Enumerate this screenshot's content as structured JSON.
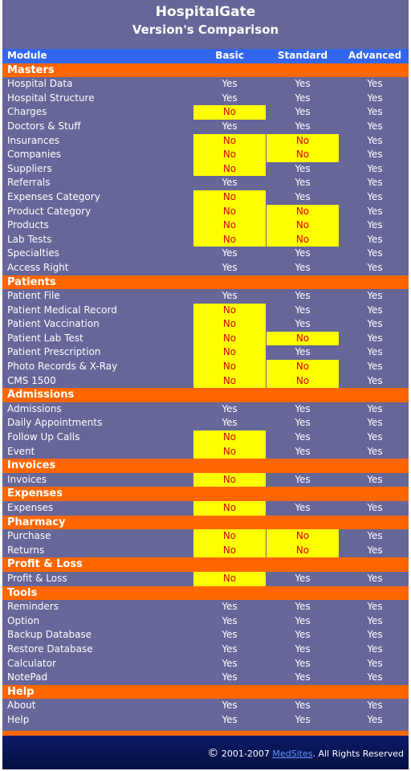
{
  "header": {
    "title": "HospitalGate",
    "subtitle": "Version's Comparison"
  },
  "table": {
    "columns": [
      "Module",
      "Basic",
      "Standard",
      "Advanced"
    ],
    "sections": [
      {
        "name": "Masters",
        "rows": [
          {
            "feature": "Hospital Data",
            "values": [
              "Yes",
              "Yes",
              "Yes"
            ]
          },
          {
            "feature": "Hospital Structure",
            "values": [
              "Yes",
              "Yes",
              "Yes"
            ]
          },
          {
            "feature": "Charges",
            "values": [
              "No",
              "Yes",
              "Yes"
            ]
          },
          {
            "feature": "Doctors & Stuff",
            "values": [
              "Yes",
              "Yes",
              "Yes"
            ]
          },
          {
            "feature": "Insurances",
            "values": [
              "No",
              "No",
              "Yes"
            ]
          },
          {
            "feature": "Companies",
            "values": [
              "No",
              "No",
              "Yes"
            ]
          },
          {
            "feature": "Suppliers",
            "values": [
              "No",
              "Yes",
              "Yes"
            ]
          },
          {
            "feature": "Referrals",
            "values": [
              "Yes",
              "Yes",
              "Yes"
            ]
          },
          {
            "feature": "Expenses Category",
            "values": [
              "No",
              "Yes",
              "Yes"
            ]
          },
          {
            "feature": "Product Category",
            "values": [
              "No",
              "No",
              "Yes"
            ]
          },
          {
            "feature": "Products",
            "values": [
              "No",
              "No",
              "Yes"
            ]
          },
          {
            "feature": "Lab Tests",
            "values": [
              "No",
              "No",
              "Yes"
            ]
          },
          {
            "feature": "Specialties",
            "values": [
              "Yes",
              "Yes",
              "Yes"
            ]
          },
          {
            "feature": "Access Right",
            "values": [
              "Yes",
              "Yes",
              "Yes"
            ]
          }
        ]
      },
      {
        "name": "Patients",
        "rows": [
          {
            "feature": "Patient File",
            "values": [
              "Yes",
              "Yes",
              "Yes"
            ]
          },
          {
            "feature": "Patient Medical Record",
            "values": [
              "No",
              "Yes",
              "Yes"
            ]
          },
          {
            "feature": "Patient Vaccination",
            "values": [
              "No",
              "Yes",
              "Yes"
            ]
          },
          {
            "feature": "Patient Lab Test",
            "values": [
              "No",
              "No",
              "Yes"
            ]
          },
          {
            "feature": "Patient Prescription",
            "values": [
              "No",
              "Yes",
              "Yes"
            ]
          },
          {
            "feature": "Photo Records & X-Ray",
            "values": [
              "No",
              "No",
              "Yes"
            ]
          },
          {
            "feature": "CMS 1500",
            "values": [
              "No",
              "No",
              "Yes"
            ]
          }
        ]
      },
      {
        "name": "Admissions",
        "rows": [
          {
            "feature": "Admissions",
            "values": [
              "Yes",
              "Yes",
              "Yes"
            ]
          },
          {
            "feature": "Daily Appointments",
            "values": [
              "Yes",
              "Yes",
              "Yes"
            ]
          },
          {
            "feature": "Follow Up Calls",
            "values": [
              "No",
              "Yes",
              "Yes"
            ]
          },
          {
            "feature": "Event",
            "values": [
              "No",
              "Yes",
              "Yes"
            ]
          }
        ]
      },
      {
        "name": "Invoices",
        "rows": [
          {
            "feature": "Invoices",
            "values": [
              "No",
              "Yes",
              "Yes"
            ]
          }
        ]
      },
      {
        "name": "Expenses",
        "rows": [
          {
            "feature": "Expenses",
            "values": [
              "No",
              "Yes",
              "Yes"
            ]
          }
        ]
      },
      {
        "name": "Pharmacy",
        "rows": [
          {
            "feature": "Purchase",
            "values": [
              "No",
              "No",
              "Yes"
            ]
          },
          {
            "feature": "Returns",
            "values": [
              "No",
              "No",
              "Yes"
            ]
          }
        ]
      },
      {
        "name": "Profit & Loss",
        "rows": [
          {
            "feature": "Profit & Loss",
            "values": [
              "No",
              "Yes",
              "Yes"
            ]
          }
        ]
      },
      {
        "name": "Tools",
        "rows": [
          {
            "feature": "Reminders",
            "values": [
              "Yes",
              "Yes",
              "Yes"
            ]
          },
          {
            "feature": "Option",
            "values": [
              "Yes",
              "Yes",
              "Yes"
            ]
          },
          {
            "feature": "Backup Database",
            "values": [
              "Yes",
              "Yes",
              "Yes"
            ]
          },
          {
            "feature": "Restore Database",
            "values": [
              "Yes",
              "Yes",
              "Yes"
            ]
          },
          {
            "feature": "Calculator",
            "values": [
              "Yes",
              "Yes",
              "Yes"
            ]
          },
          {
            "feature": "NotePad",
            "values": [
              "Yes",
              "Yes",
              "Yes"
            ]
          }
        ]
      },
      {
        "name": "Help",
        "rows": [
          {
            "feature": "About",
            "values": [
              "Yes",
              "Yes",
              "Yes"
            ]
          },
          {
            "feature": "Help",
            "values": [
              "Yes",
              "Yes",
              "Yes"
            ]
          }
        ]
      }
    ]
  },
  "footer": {
    "copyright_symbol": "©",
    "years": " 2001-2007 ",
    "link_text": "MedSites",
    "suffix": ". All Rights Reserved"
  },
  "colors": {
    "background": "#666699",
    "header_row": "#3366ee",
    "section_row": "#ff6600",
    "no_cell_bg": "#ffff00",
    "no_text": "#dd0000"
  }
}
